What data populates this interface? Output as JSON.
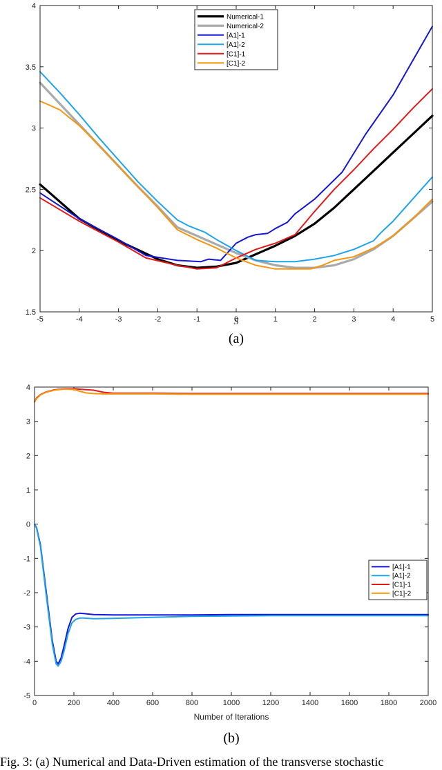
{
  "chart_data": [
    {
      "type": "line",
      "panel_label": "(a)",
      "xlabel": "S",
      "ylabel": "",
      "xlim": [
        -5,
        5
      ],
      "ylim": [
        1.5,
        4
      ],
      "xticks": [
        -5,
        -4,
        -3,
        -2,
        -1,
        0,
        1,
        2,
        3,
        4,
        5
      ],
      "yticks": [
        1.5,
        2,
        2.5,
        3,
        3.5,
        4
      ],
      "legend_position": "top-center",
      "series": [
        {
          "name": "Numerical-1",
          "color": "#000000",
          "width": 3.2,
          "x": [
            -5,
            -4,
            -3,
            -2,
            -1.5,
            -1,
            -0.5,
            0,
            0.5,
            1,
            1.5,
            2,
            2.5,
            3,
            3.5,
            4,
            4.5,
            5
          ],
          "y": [
            2.54,
            2.26,
            2.08,
            1.93,
            1.88,
            1.86,
            1.87,
            1.9,
            1.97,
            2.04,
            2.12,
            2.22,
            2.35,
            2.5,
            2.65,
            2.8,
            2.95,
            3.1
          ]
        },
        {
          "name": "Numerical-2",
          "color": "#aaaaaa",
          "width": 3.2,
          "x": [
            -5,
            -4.5,
            -4,
            -3.5,
            -3,
            -2.5,
            -2,
            -1.5,
            -1,
            -0.5,
            0,
            0.5,
            1,
            1.5,
            2,
            2.5,
            3,
            3.5,
            4,
            4.5,
            5
          ],
          "y": [
            3.37,
            3.2,
            3.03,
            2.86,
            2.69,
            2.52,
            2.36,
            2.19,
            2.12,
            2.05,
            1.98,
            1.92,
            1.88,
            1.86,
            1.86,
            1.88,
            1.93,
            2.01,
            2.12,
            2.26,
            2.4
          ]
        },
        {
          "name": "[A1]-1",
          "color": "#1515d6",
          "width": 2,
          "x": [
            -5,
            -4,
            -3,
            -2.3,
            -1.5,
            -0.9,
            -0.7,
            -0.4,
            0,
            0.3,
            0.5,
            0.8,
            1.0,
            1.3,
            1.5,
            2.0,
            2.7,
            3.3,
            4.0,
            4.5,
            5
          ],
          "y": [
            2.47,
            2.26,
            2.09,
            1.96,
            1.92,
            1.91,
            1.93,
            1.92,
            2.06,
            2.11,
            2.13,
            2.14,
            2.18,
            2.23,
            2.3,
            2.42,
            2.64,
            2.95,
            3.27,
            3.55,
            3.83
          ]
        },
        {
          "name": "[A1]-2",
          "color": "#1ea4ec",
          "width": 2,
          "x": [
            -5,
            -4.5,
            -4,
            -3.5,
            -3,
            -2.5,
            -2,
            -1.5,
            -1.2,
            -0.8,
            -0.5,
            0,
            0.5,
            1,
            1.5,
            2,
            2.5,
            3,
            3.5,
            3.7,
            4,
            4.5,
            5
          ],
          "y": [
            3.46,
            3.29,
            3.11,
            2.92,
            2.74,
            2.56,
            2.4,
            2.25,
            2.2,
            2.15,
            2.09,
            2.0,
            1.92,
            1.91,
            1.91,
            1.93,
            1.96,
            2.01,
            2.08,
            2.15,
            2.24,
            2.42,
            2.6
          ]
        },
        {
          "name": "[C1]-1",
          "color": "#e31a1a",
          "width": 2,
          "x": [
            -5,
            -4,
            -3,
            -2.3,
            -1.5,
            -1,
            -0.5,
            0,
            0.5,
            1,
            1.5,
            2,
            2.5,
            3,
            3.5,
            4,
            4.5,
            5
          ],
          "y": [
            2.43,
            2.24,
            2.07,
            1.94,
            1.88,
            1.85,
            1.86,
            1.94,
            2.01,
            2.06,
            2.13,
            2.32,
            2.5,
            2.66,
            2.83,
            2.99,
            3.16,
            3.32
          ]
        },
        {
          "name": "[C1]-2",
          "color": "#f6950f",
          "width": 2,
          "x": [
            -5,
            -4.5,
            -4,
            -3.5,
            -3,
            -2.5,
            -2,
            -1.5,
            -1,
            -0.5,
            0,
            0.5,
            1,
            1.5,
            1.9,
            2.2,
            2.5,
            3,
            3.5,
            4,
            4.5,
            5
          ],
          "y": [
            3.22,
            3.15,
            3.02,
            2.86,
            2.69,
            2.52,
            2.35,
            2.17,
            2.09,
            2.02,
            1.94,
            1.88,
            1.85,
            1.85,
            1.85,
            1.88,
            1.92,
            1.95,
            2.02,
            2.12,
            2.26,
            2.42
          ]
        }
      ]
    },
    {
      "type": "line",
      "panel_label": "(b)",
      "xlabel": "Number of Iterations",
      "ylabel": "",
      "xlim": [
        0,
        2000
      ],
      "ylim": [
        -5,
        4
      ],
      "xticks": [
        0,
        200,
        400,
        600,
        800,
        1000,
        1200,
        1400,
        1600,
        1800,
        2000
      ],
      "yticks": [
        -5,
        -4,
        -3,
        -2,
        -1,
        0,
        1,
        2,
        3,
        4
      ],
      "legend_position": "right",
      "series": [
        {
          "name": "[A1]-1",
          "color": "#1515d6",
          "width": 2,
          "x": [
            0,
            10,
            30,
            60,
            90,
            110,
            120,
            135,
            150,
            170,
            190,
            210,
            230,
            250,
            300,
            400,
            600,
            800,
            1000,
            1200,
            1500,
            1800,
            2000
          ],
          "y": [
            0,
            -0.1,
            -0.6,
            -2.0,
            -3.4,
            -4.0,
            -4.08,
            -3.9,
            -3.55,
            -3.05,
            -2.72,
            -2.62,
            -2.6,
            -2.61,
            -2.64,
            -2.65,
            -2.65,
            -2.65,
            -2.64,
            -2.64,
            -2.64,
            -2.64,
            -2.64
          ]
        },
        {
          "name": "[A1]-2",
          "color": "#1ea4ec",
          "width": 2,
          "x": [
            0,
            10,
            30,
            60,
            90,
            110,
            120,
            135,
            150,
            170,
            190,
            210,
            230,
            250,
            300,
            400,
            600,
            800,
            1000,
            1200,
            1500,
            1800,
            2000
          ],
          "y": [
            0,
            -0.12,
            -0.65,
            -2.1,
            -3.5,
            -4.08,
            -4.14,
            -4.0,
            -3.7,
            -3.2,
            -2.88,
            -2.78,
            -2.74,
            -2.74,
            -2.76,
            -2.75,
            -2.72,
            -2.69,
            -2.68,
            -2.67,
            -2.67,
            -2.67,
            -2.67
          ]
        },
        {
          "name": "[C1]-1",
          "color": "#e31a1a",
          "width": 2,
          "x": [
            0,
            10,
            30,
            60,
            100,
            150,
            200,
            250,
            300,
            350,
            400,
            600,
            800,
            1000,
            1500,
            2000
          ],
          "y": [
            3.58,
            3.68,
            3.78,
            3.86,
            3.92,
            3.95,
            3.95,
            3.93,
            3.91,
            3.85,
            3.82,
            3.82,
            3.81,
            3.81,
            3.81,
            3.81
          ]
        },
        {
          "name": "[C1]-2",
          "color": "#f6950f",
          "width": 2,
          "x": [
            0,
            10,
            30,
            60,
            100,
            150,
            200,
            230,
            260,
            300,
            350,
            400,
            600,
            800,
            1000,
            1500,
            2000
          ],
          "y": [
            3.56,
            3.66,
            3.77,
            3.85,
            3.91,
            3.94,
            3.93,
            3.88,
            3.83,
            3.81,
            3.8,
            3.8,
            3.8,
            3.79,
            3.79,
            3.79,
            3.79
          ]
        }
      ]
    }
  ],
  "caption": "Fig. 3:  (a) Numerical and Data-Driven estimation of the transverse stochastic"
}
